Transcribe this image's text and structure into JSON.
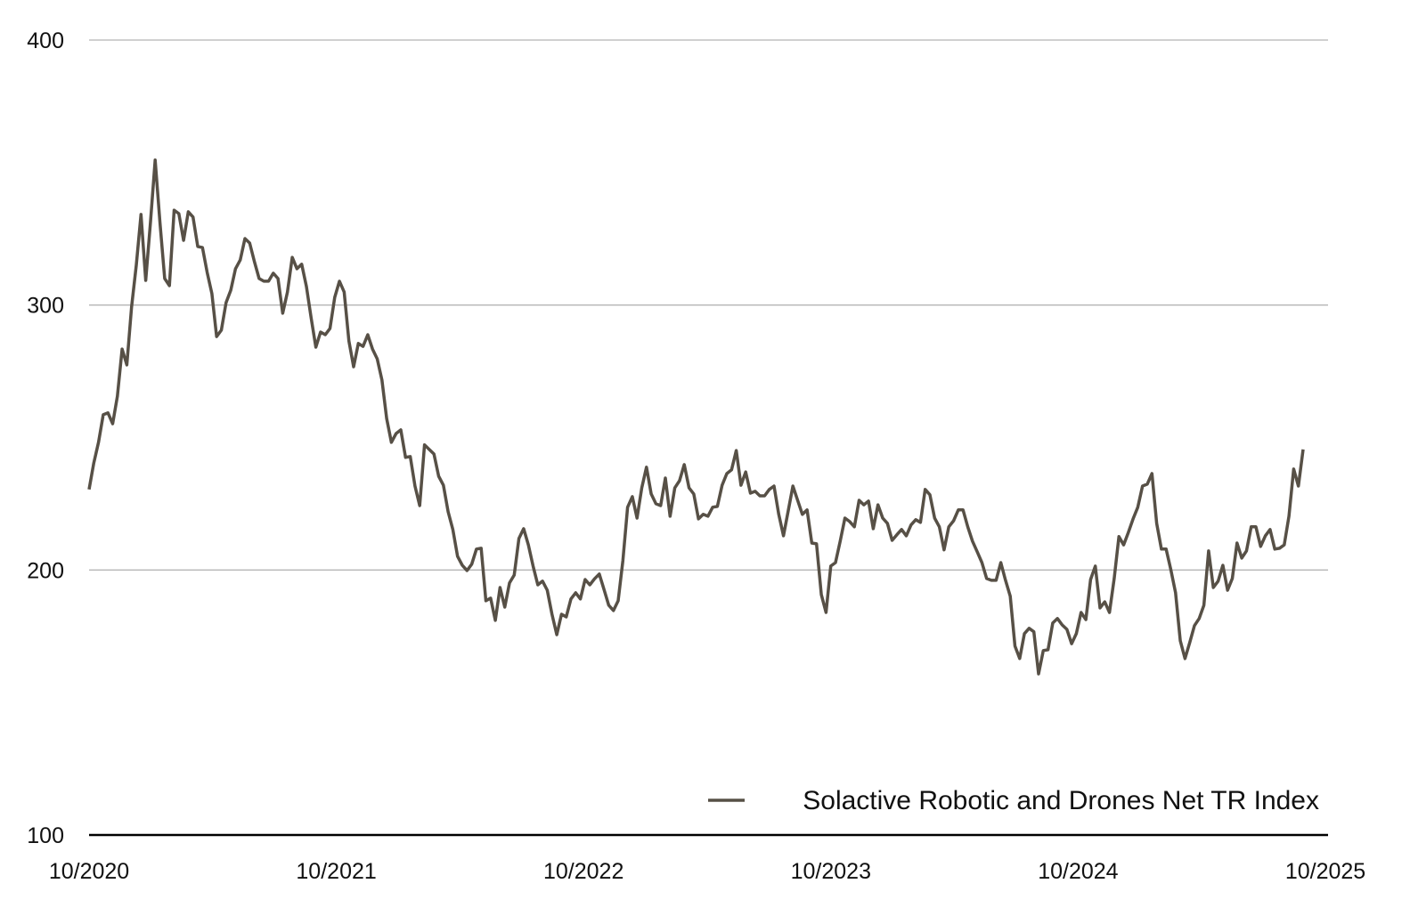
{
  "chart_data": {
    "type": "line",
    "title": "",
    "xlabel": "",
    "ylabel": "",
    "ylim": [
      100,
      400
    ],
    "yticks": [
      "100",
      "200",
      "300",
      "400"
    ],
    "ytick_values": [
      100,
      200,
      300,
      400
    ],
    "grid_values": [
      200,
      300,
      400
    ],
    "xticks": [
      "10/2020",
      "10/2021",
      "10/2022",
      "10/2023",
      "10/2024",
      "10/2025"
    ],
    "x_range_years": [
      0,
      5
    ],
    "series_span_years": [
      0,
      4.91
    ],
    "frequency": "weekly",
    "legend_position": "bottom-right",
    "line_color": "#575046",
    "series": [
      {
        "name": "Solactive Robotic and Drones Net TR Index",
        "values": [
          230.4,
          240.4,
          248.2,
          258.6,
          259.3,
          255.2,
          265.6,
          283.4,
          277.4,
          299.2,
          315,
          334.2,
          309.3,
          331.1,
          354.7,
          331.1,
          310,
          307.3,
          335.8,
          334.5,
          324.4,
          335.2,
          333.2,
          322.1,
          321.7,
          312.3,
          304.3,
          288.1,
          290.5,
          300.9,
          305.6,
          313.7,
          317,
          325.1,
          323.4,
          316.4,
          310,
          309,
          309,
          312,
          310,
          296.9,
          304.9,
          318,
          313.7,
          315.4,
          307,
          295.2,
          284.1,
          289.8,
          288.8,
          291.2,
          302.9,
          309,
          304.9,
          286.5,
          276.7,
          285.5,
          284.4,
          288.8,
          283.4,
          279.7,
          271.7,
          257.2,
          248.2,
          251.5,
          252.9,
          242.5,
          242.8,
          231.7,
          224.3,
          247.2,
          245.5,
          243.8,
          235.4,
          232,
          222,
          215.3,
          205.2,
          201.8,
          199.8,
          202.2,
          207.9,
          208.2,
          188.4,
          189.4,
          181,
          193.4,
          186,
          195.1,
          198.1,
          211.9,
          215.6,
          209.5,
          201.5,
          194.4,
          195.8,
          192.4,
          183.3,
          175.6,
          183.3,
          182.3,
          189.1,
          191.4,
          189.1,
          196.4,
          194.4,
          196.7,
          198.5,
          192.7,
          186.7,
          184.7,
          188.4,
          203.5,
          223.7,
          227.7,
          219.6,
          231,
          238.8,
          228.7,
          225,
          224.3,
          234.7,
          220.3,
          231,
          233.7,
          239.8,
          231,
          228.7,
          219.3,
          221,
          220.3,
          223.7,
          224,
          232,
          236.4,
          237.8,
          245.1,
          232,
          237,
          229,
          229.7,
          228,
          228,
          230.4,
          231.7,
          221,
          212.9,
          222.3,
          231.7,
          226.3,
          221,
          222.7,
          210.2,
          209.9,
          190.7,
          184,
          201.5,
          202.8,
          210.9,
          219.6,
          218.3,
          216.3,
          226.3,
          224.6,
          226,
          215.6,
          224.6,
          219.6,
          217.6,
          211.2,
          213.3,
          215.3,
          212.9,
          217,
          219,
          218,
          230.4,
          228.4,
          219.6,
          216.3,
          207.6,
          216.3,
          218.6,
          222.7,
          222.7,
          216.3,
          210.9,
          206.9,
          202.8,
          196.8,
          196.1,
          196.1,
          202.8,
          196.1,
          190.1,
          171.3,
          166.6,
          176,
          178,
          176.7,
          160.8,
          169.6,
          169.9,
          180,
          181.7,
          179.3,
          177.6,
          172.2,
          176,
          184,
          181.3,
          196.4,
          201.5,
          185.7,
          188,
          184,
          196.8,
          212.6,
          209.5,
          214.2,
          219.3,
          223.7,
          231.7,
          232.4,
          236.4,
          217.6,
          207.9,
          207.9,
          200.1,
          191.4,
          173.3,
          166.6,
          172.6,
          179,
          181.7,
          186.7,
          207.2,
          193.4,
          195.8,
          201.8,
          192.4,
          196.8,
          210.2,
          204.5,
          207.2,
          216.3,
          216.3,
          208.9,
          212.9,
          215.3,
          207.9,
          208.2,
          209.5,
          220.3,
          238.1,
          231.7,
          245.5
        ]
      }
    ]
  }
}
